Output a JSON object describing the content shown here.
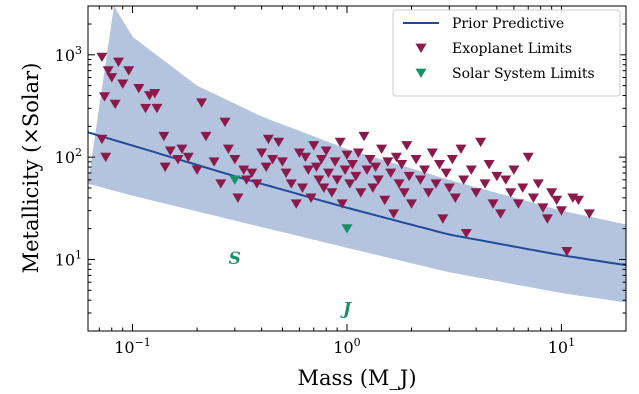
{
  "chart_data": {
    "type": "scatter",
    "xlabel": "Mass (M_J)",
    "ylabel": "Metallicity (×Solar)",
    "xscale": "log",
    "yscale": "log",
    "xlim": [
      0.062,
      20
    ],
    "ylim": [
      2,
      3000
    ],
    "x_ticks": [
      {
        "value": 0.1,
        "base": "10",
        "exp": "−1"
      },
      {
        "value": 1,
        "base": "10",
        "exp": "0"
      },
      {
        "value": 10,
        "base": "10",
        "exp": "1"
      }
    ],
    "y_ticks": [
      {
        "value": 10,
        "base": "10",
        "exp": "1"
      },
      {
        "value": 100,
        "base": "10",
        "exp": "2"
      },
      {
        "value": 1000,
        "base": "10",
        "exp": "3"
      }
    ],
    "grid": false,
    "legend_position": "top-right",
    "colors": {
      "prior_line": "#1f4b99",
      "prior_band": "#b4c3de",
      "exoplanet": "#8b1a4a",
      "solar_system": "#1a8f6b"
    },
    "prior_predictive": {
      "name": "Prior Predictive",
      "median": [
        [
          0.062,
          175
        ],
        [
          0.1,
          130
        ],
        [
          0.3,
          65
        ],
        [
          1,
          32
        ],
        [
          3,
          17.5
        ],
        [
          10,
          11
        ],
        [
          20,
          8.8
        ]
      ],
      "upper": [
        [
          0.082,
          3000
        ],
        [
          0.1,
          1500
        ],
        [
          0.2,
          500
        ],
        [
          0.4,
          250
        ],
        [
          1,
          120
        ],
        [
          3,
          60
        ],
        [
          10,
          30
        ],
        [
          20,
          22
        ]
      ],
      "lower": [
        [
          0.062,
          55
        ],
        [
          0.1,
          42
        ],
        [
          0.3,
          24
        ],
        [
          1,
          13
        ],
        [
          3,
          7.5
        ],
        [
          10,
          4.7
        ],
        [
          20,
          3.8
        ]
      ]
    },
    "exoplanet_limits": {
      "name": "Exoplanet Limits",
      "points": [
        [
          0.072,
          950
        ],
        [
          0.077,
          700
        ],
        [
          0.08,
          600
        ],
        [
          0.086,
          850
        ],
        [
          0.074,
          390
        ],
        [
          0.083,
          330
        ],
        [
          0.072,
          150
        ],
        [
          0.075,
          100
        ],
        [
          0.09,
          520
        ],
        [
          0.096,
          700
        ],
        [
          0.107,
          470
        ],
        [
          0.115,
          300
        ],
        [
          0.12,
          400
        ],
        [
          0.127,
          420
        ],
        [
          0.13,
          300
        ],
        [
          0.14,
          160
        ],
        [
          0.142,
          80
        ],
        [
          0.15,
          115
        ],
        [
          0.163,
          95
        ],
        [
          0.17,
          120
        ],
        [
          0.182,
          100
        ],
        [
          0.2,
          75
        ],
        [
          0.21,
          340
        ],
        [
          0.22,
          160
        ],
        [
          0.24,
          90
        ],
        [
          0.258,
          55
        ],
        [
          0.27,
          220
        ],
        [
          0.28,
          120
        ],
        [
          0.3,
          95
        ],
        [
          0.31,
          40
        ],
        [
          0.33,
          75
        ],
        [
          0.34,
          60
        ],
        [
          0.36,
          70
        ],
        [
          0.38,
          55
        ],
        [
          0.4,
          110
        ],
        [
          0.42,
          80
        ],
        [
          0.43,
          150
        ],
        [
          0.45,
          95
        ],
        [
          0.48,
          140
        ],
        [
          0.5,
          90
        ],
        [
          0.52,
          70
        ],
        [
          0.55,
          55
        ],
        [
          0.58,
          35
        ],
        [
          0.6,
          110
        ],
        [
          0.62,
          50
        ],
        [
          0.64,
          100
        ],
        [
          0.66,
          75
        ],
        [
          0.68,
          40
        ],
        [
          0.7,
          130
        ],
        [
          0.72,
          80
        ],
        [
          0.74,
          60
        ],
        [
          0.76,
          95
        ],
        [
          0.78,
          50
        ],
        [
          0.8,
          115
        ],
        [
          0.82,
          70
        ],
        [
          0.85,
          45
        ],
        [
          0.88,
          90
        ],
        [
          0.9,
          60
        ],
        [
          0.93,
          140
        ],
        [
          0.95,
          35
        ],
        [
          0.98,
          75
        ],
        [
          1.0,
          105
        ],
        [
          1.03,
          55
        ],
        [
          1.06,
          85
        ],
        [
          1.1,
          65
        ],
        [
          1.13,
          110
        ],
        [
          1.16,
          45
        ],
        [
          1.2,
          160
        ],
        [
          1.24,
          75
        ],
        [
          1.28,
          95
        ],
        [
          1.32,
          50
        ],
        [
          1.36,
          80
        ],
        [
          1.4,
          60
        ],
        [
          1.45,
          120
        ],
        [
          1.5,
          38
        ],
        [
          1.55,
          90
        ],
        [
          1.6,
          70
        ],
        [
          1.65,
          28
        ],
        [
          1.7,
          100
        ],
        [
          1.75,
          55
        ],
        [
          1.8,
          85
        ],
        [
          1.85,
          45
        ],
        [
          1.9,
          130
        ],
        [
          1.95,
          65
        ],
        [
          2.0,
          35
        ],
        [
          2.1,
          95
        ],
        [
          2.2,
          60
        ],
        [
          2.3,
          75
        ],
        [
          2.4,
          45
        ],
        [
          2.5,
          110
        ],
        [
          2.6,
          55
        ],
        [
          2.7,
          85
        ],
        [
          2.8,
          25
        ],
        [
          2.9,
          70
        ],
        [
          3.0,
          50
        ],
        [
          3.1,
          95
        ],
        [
          3.2,
          40
        ],
        [
          3.4,
          120
        ],
        [
          3.5,
          60
        ],
        [
          3.6,
          18
        ],
        [
          3.8,
          75
        ],
        [
          4.0,
          45
        ],
        [
          4.2,
          140
        ],
        [
          4.4,
          55
        ],
        [
          4.6,
          85
        ],
        [
          4.8,
          35
        ],
        [
          5.0,
          65
        ],
        [
          5.2,
          28
        ],
        [
          5.5,
          60
        ],
        [
          5.8,
          45
        ],
        [
          6.0,
          75
        ],
        [
          6.3,
          35
        ],
        [
          6.6,
          50
        ],
        [
          7.0,
          100
        ],
        [
          7.4,
          40
        ],
        [
          7.8,
          55
        ],
        [
          8.2,
          32
        ],
        [
          8.6,
          25
        ],
        [
          9.0,
          45
        ],
        [
          9.5,
          38
        ],
        [
          10.0,
          30
        ],
        [
          10.6,
          12
        ],
        [
          11.3,
          40
        ],
        [
          12.0,
          38
        ],
        [
          13.5,
          28
        ]
      ]
    },
    "solar_system_limits": {
      "name": "Solar System Limits",
      "points": [
        [
          0.3,
          60
        ],
        [
          1.0,
          20
        ]
      ]
    },
    "annotations": [
      {
        "text": "S",
        "x": 0.3,
        "y": 10
      },
      {
        "text": "J",
        "x": 1.0,
        "y": 3.2
      }
    ]
  }
}
